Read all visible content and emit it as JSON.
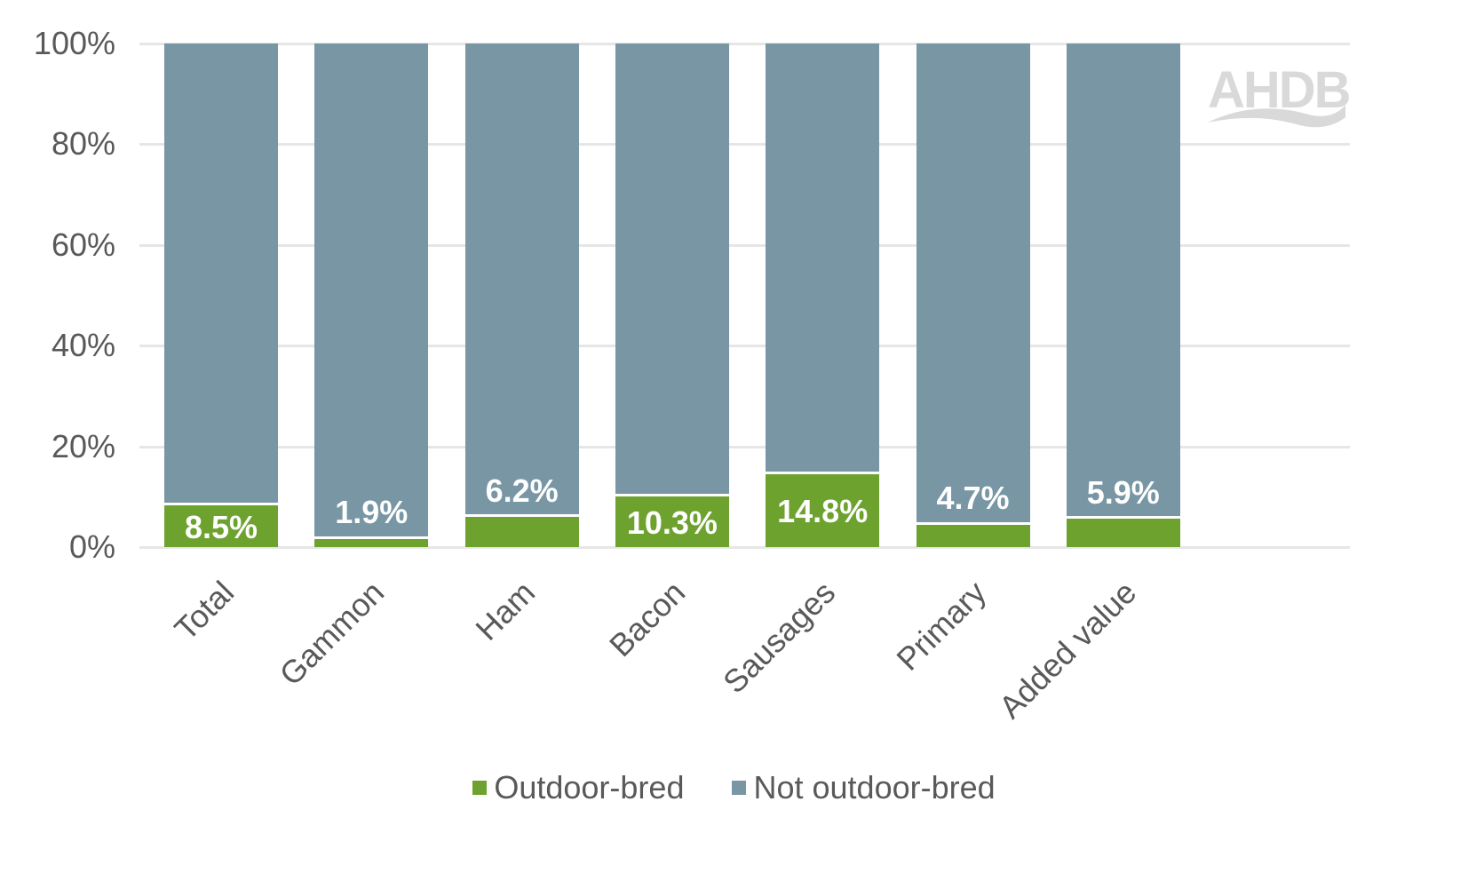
{
  "chart_data": {
    "type": "bar",
    "stacked": true,
    "title": "",
    "xlabel": "",
    "ylabel": "",
    "ylim": [
      0,
      100
    ],
    "y_ticks": [
      "0%",
      "20%",
      "40%",
      "60%",
      "80%",
      "100%"
    ],
    "categories": [
      "Total",
      "Gammon",
      "Ham",
      "Bacon",
      "Sausages",
      "Primary",
      "Added value"
    ],
    "series": [
      {
        "name": "Outdoor-bred",
        "color": "#6da22f",
        "values": [
          8.5,
          1.9,
          6.2,
          10.3,
          14.8,
          4.7,
          5.9
        ]
      },
      {
        "name": "Not outdoor-bred",
        "color": "#7896a3",
        "values": [
          91.5,
          98.1,
          93.8,
          89.7,
          85.2,
          95.3,
          94.1
        ]
      }
    ],
    "data_labels": [
      "8.5%",
      "1.9%",
      "6.2%",
      "10.3%",
      "14.8%",
      "4.7%",
      "5.9%"
    ],
    "legend_position": "bottom",
    "grid": true
  },
  "legend": {
    "items": [
      {
        "label": "Outdoor-bred",
        "color": "#6da22f"
      },
      {
        "label": "Not outdoor-bred",
        "color": "#7896a3"
      }
    ]
  },
  "watermark": {
    "text": "AHDB"
  }
}
